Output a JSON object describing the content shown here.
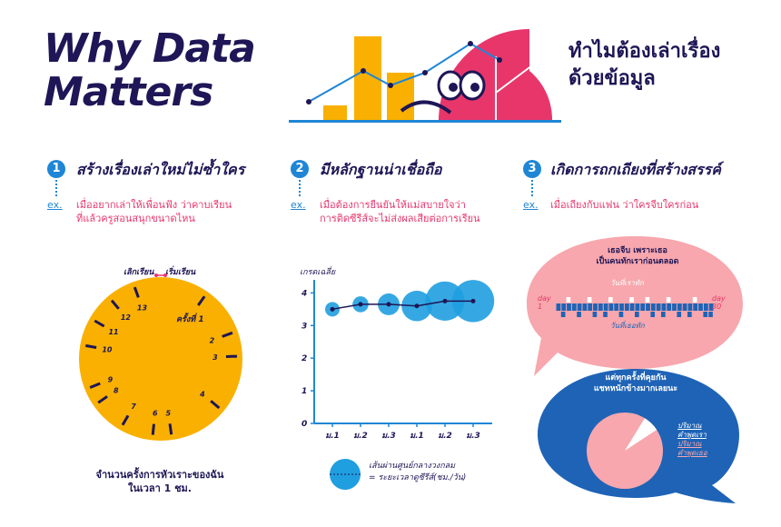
{
  "header": {
    "title_line1": "Why Data",
    "title_line2": "Matters",
    "title_th_line1": "ทำไมต้องเล่าเรื่อง",
    "title_th_line2": "ด้วยข้อมูล"
  },
  "sections": [
    {
      "number": "1",
      "title": "สร้างเรื่องเล่าใหม่ไม่ซ้ำใคร",
      "ex": "ex.",
      "desc_line1": "เมื่ออยากเล่าให้เพื่อนฟัง ว่าคาบเรียน",
      "desc_line2": "ที่แล้วครูสอนสนุกขนาดไหน"
    },
    {
      "number": "2",
      "title": "มีหลักฐานน่าเชื่อถือ",
      "ex": "ex.",
      "desc_line1": "เมื่อต้องการยืนยันให้แม่สบายใจว่า",
      "desc_line2": "การติดซีรีส์จะไม่ส่งผลเสียต่อการเรียน"
    },
    {
      "number": "3",
      "title": "เกิดการถกเถียงที่สร้างสรรค์",
      "ex": "ex.",
      "desc_line1": "เมื่อเถียงกับแฟน ว่าใครจีบใครก่อน"
    }
  ],
  "clock": {
    "label_end": "เลิกเรียน",
    "label_start": "เริ่มเรียน",
    "label_first": "ครั้งที่ 1",
    "numbers": [
      "2",
      "3",
      "4",
      "5",
      "6",
      "7",
      "8",
      "9",
      "10",
      "11",
      "12",
      "13"
    ],
    "caption_line1": "จำนวนครั้งการหัวเราะของฉัน",
    "caption_line2": "ในเวลา 1 ชม.",
    "color": "#f9b000"
  },
  "chart_data": {
    "type": "scatter",
    "ylabel": "เกรดเฉลี่ย",
    "categories": [
      "ม.1",
      "ม.2",
      "ม.3",
      "ม.1",
      "ม.2",
      "ม.3"
    ],
    "yticks": [
      "0",
      "1",
      "2",
      "3",
      "4"
    ],
    "ylim": [
      0,
      4.4
    ],
    "values": [
      3.5,
      3.65,
      3.65,
      3.6,
      3.75,
      3.75
    ],
    "bubble_sizes": [
      0.5,
      0.6,
      1.0,
      1.6,
      2.2,
      2.4
    ],
    "legend_line1": "เส้นผ่านศูนย์กลางวงกลม",
    "legend_line2": "= ระยะเวลาดูซีรีส์(ชม./วัน)",
    "bubble_color": "#1f9ee0",
    "line_color": "#1e1656"
  },
  "bubble_pink": {
    "text_line1": "เธอจีบ เพราะเธอ",
    "text_line2": "เป็นคนทักเราก่อนตลอด",
    "top_label": "วันที่เราทัก",
    "bottom_label": "วันที่เธอทัก",
    "day_start": "day 1",
    "day_end": "day 30",
    "top_marks": [
      2,
      6,
      10,
      14,
      17,
      21,
      26
    ],
    "bottom_marks": [
      1,
      4,
      7,
      9,
      12,
      15,
      18,
      20,
      23,
      25,
      28,
      29
    ],
    "color": "#f7a7ad"
  },
  "bubble_blue": {
    "text_line1": "แต่ทุกครั้งที่คุยกัน",
    "text_line2": "แชทหนักข้างมากเลยนะ",
    "label_ours_1": "ปริมาณ",
    "label_ours_2": "คำพูดเรา",
    "label_theirs_1": "ปริมาณ",
    "label_theirs_2": "คำพูดเธอ",
    "ours_fraction": 0.07,
    "color": "#1e63b6"
  },
  "colors": {
    "navy": "#1e1656",
    "pink": "#e8366b",
    "blue": "#1f86d6",
    "yellow": "#f9b000"
  }
}
